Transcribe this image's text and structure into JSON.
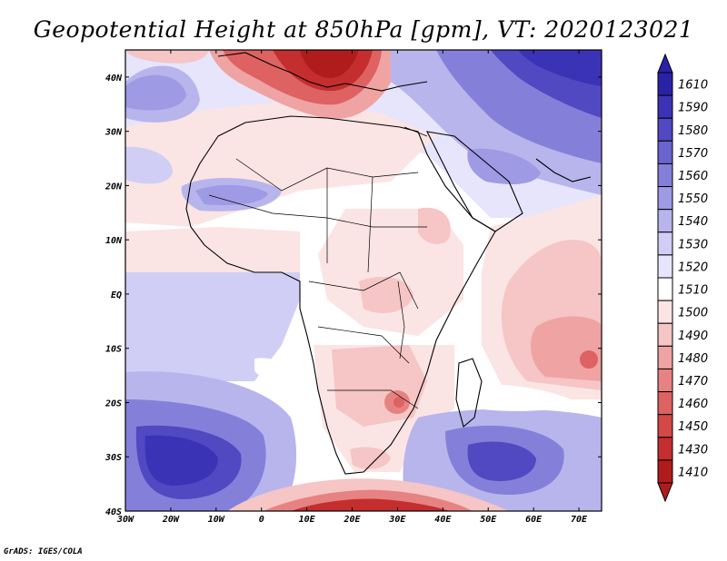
{
  "title": "Geopotential Height at 850hPa [gpm], VT: 2020123021",
  "credit": "GrADS: IGES/COLA",
  "map": {
    "variable": "Geopotential Height",
    "level": "850hPa",
    "units": "gpm",
    "valid_time": "2020123021",
    "lon_range": [
      -30,
      75
    ],
    "lat_range": [
      -40,
      45
    ],
    "lon_ticks": [
      "30W",
      "20W",
      "10W",
      "0",
      "10E",
      "20E",
      "30E",
      "40E",
      "50E",
      "60E",
      "70E"
    ],
    "lat_ticks": [
      "40N",
      "30N",
      "20N",
      "10N",
      "EQ",
      "10S",
      "20S",
      "30S",
      "40S"
    ]
  },
  "colorbar": {
    "levels": [
      "1610",
      "1590",
      "1580",
      "1570",
      "1560",
      "1550",
      "1540",
      "1530",
      "1520",
      "1510",
      "1500",
      "1490",
      "1480",
      "1470",
      "1460",
      "1450",
      "1430",
      "1410"
    ],
    "colors": [
      "#2a22a6",
      "#3b33b5",
      "#5049c2",
      "#6a64cf",
      "#8480da",
      "#9e9ae4",
      "#b8b5ed",
      "#d0cef5",
      "#e6e5fb",
      "#ffffff",
      "#fbe4e4",
      "#f6c5c5",
      "#efa3a3",
      "#e78282",
      "#de6262",
      "#d44848",
      "#c42e2e",
      "#b01c1c"
    ]
  }
}
